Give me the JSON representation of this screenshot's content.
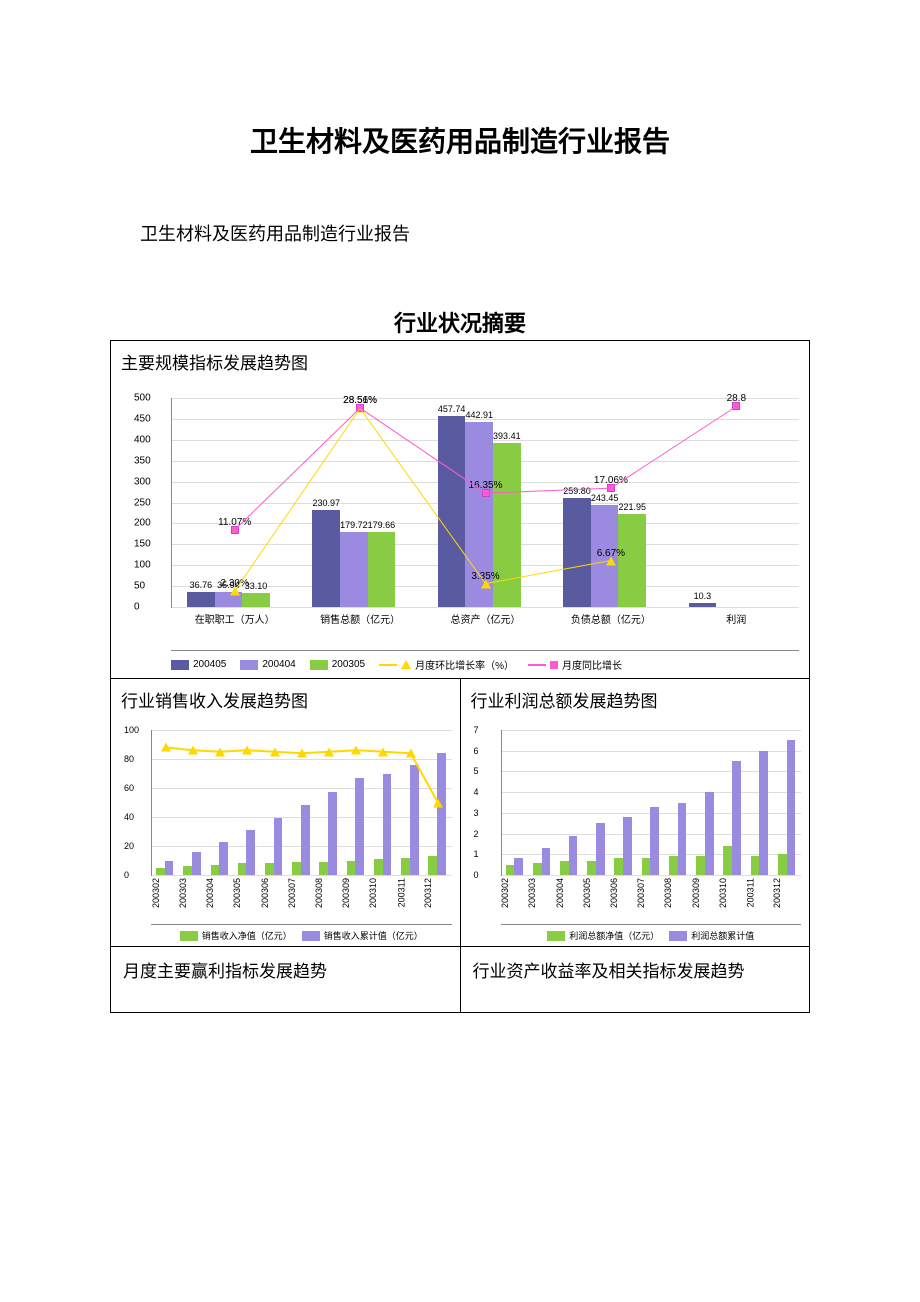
{
  "document": {
    "title": "卫生材料及医药用品制造行业报告",
    "subtitle": "卫生材料及医药用品制造行业报告",
    "section_title": "行业状况摘要"
  },
  "main_chart": {
    "title": "主要规模指标发展趋势图",
    "type": "bar+line",
    "ylim": [
      0,
      500
    ],
    "ytick_step": 50,
    "bar_colors": {
      "s1": "#5a5aa0",
      "s2": "#9a8ae0",
      "s3": "#88cc44"
    },
    "line_colors": {
      "mom": "#ffd800",
      "yoy": "#ff5ad0"
    },
    "categories": [
      "在职职工（万人）",
      "销售总额（亿元）",
      "总资产（亿元）",
      "负债总额（亿元）",
      "利润"
    ],
    "series": {
      "s1": {
        "label": "200405",
        "values": [
          36.76,
          230.97,
          457.74,
          259.8,
          10.3
        ]
      },
      "s2": {
        "label": "200404",
        "values": [
          35.94,
          179.72,
          442.91,
          243.45,
          null
        ]
      },
      "s3": {
        "label": "200305",
        "values": [
          33.1,
          179.66,
          393.41,
          221.95,
          null
        ]
      }
    },
    "mom": {
      "label": "月度环比增长率（%）",
      "values_pct": [
        2.3,
        28.51,
        3.35,
        6.67,
        null
      ],
      "display": [
        "2.30%",
        "28.51%",
        "3.35%",
        "6.67%",
        ""
      ]
    },
    "yoy": {
      "label": "月度同比增长",
      "values_pct": [
        11.07,
        28.56,
        16.35,
        17.06,
        28.8
      ],
      "display": [
        "11.07%",
        "28.56%",
        "16.35%",
        "17.06%",
        "28.8"
      ]
    },
    "bar_value_labels": [
      [
        "36.76",
        "35.94",
        "33.10"
      ],
      [
        "230.97",
        "179.72",
        "179.66"
      ],
      [
        "457.74",
        "442.91",
        "393.41"
      ],
      [
        "259.80",
        "243.45",
        "221.95"
      ],
      [
        "10.3",
        "",
        ""
      ]
    ],
    "pct_scale_max": 30
  },
  "sales_chart": {
    "title": "行业销售收入发展趋势图",
    "type": "bar+line",
    "ylim": [
      0,
      100
    ],
    "ytick_step": 20,
    "categories": [
      "200302",
      "200303",
      "200304",
      "200305",
      "200306",
      "200307",
      "200308",
      "200309",
      "200310",
      "200311",
      "200312"
    ],
    "series": {
      "net": {
        "label": "销售收入净值（亿元）",
        "color": "#88cc44",
        "values": [
          5,
          6,
          7,
          8,
          8,
          9,
          9,
          10,
          11,
          12,
          13
        ]
      },
      "cum": {
        "label": "销售收入累计值（亿元）",
        "color": "#9a8ae0",
        "values": [
          10,
          16,
          23,
          31,
          39,
          48,
          57,
          67,
          70,
          76,
          84
        ]
      }
    },
    "line": {
      "color": "#ffd800",
      "values": [
        88,
        86,
        85,
        86,
        85,
        84,
        85,
        86,
        85,
        84,
        50
      ]
    }
  },
  "profit_chart": {
    "title": "行业利润总额发展趋势图",
    "type": "bar",
    "ylim": [
      0,
      7
    ],
    "ytick_step": 1,
    "categories": [
      "200302",
      "200303",
      "200304",
      "200305",
      "200306",
      "200307",
      "200308",
      "200309",
      "200310",
      "200311",
      "200312"
    ],
    "series": {
      "net": {
        "label": "利润总额净值（亿元）",
        "color": "#88cc44",
        "values": [
          0.5,
          0.6,
          0.7,
          0.7,
          0.8,
          0.8,
          0.9,
          0.9,
          1.4,
          0.9,
          1.0
        ]
      },
      "cum": {
        "label": "利润总额累计值",
        "color": "#9a8ae0",
        "values": [
          0.8,
          1.3,
          1.9,
          2.5,
          2.8,
          3.3,
          3.5,
          4.0,
          5.5,
          6.0,
          6.5
        ]
      }
    }
  },
  "bottom_row": {
    "left": "月度主要赢利指标发展趋势",
    "right": "行业资产收益率及相关指标发展趋势"
  },
  "colors": {
    "text": "#000000",
    "grid": "#dddddd",
    "border": "#000000",
    "axis": "#888888"
  }
}
